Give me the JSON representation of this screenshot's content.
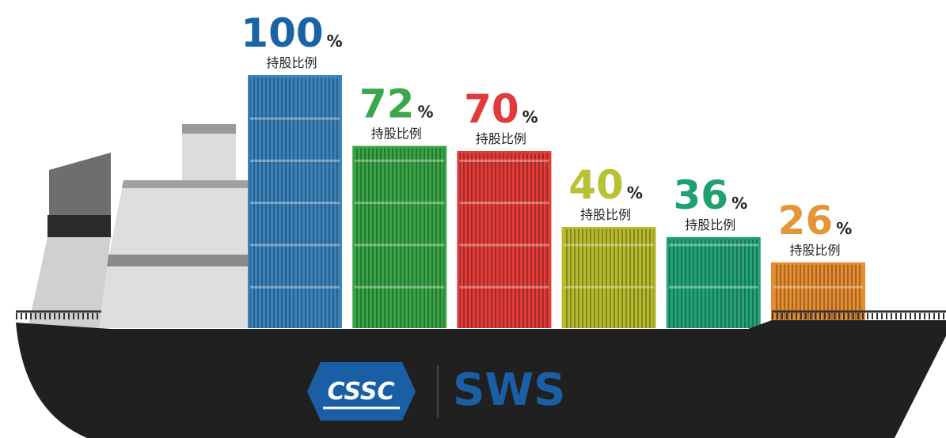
{
  "chart_data": {
    "type": "bar",
    "values": [
      100,
      72,
      70,
      40,
      36,
      26
    ],
    "value_unit": "%",
    "value_caption": "持股比例",
    "colors": [
      "#3a82bb",
      "#37a445",
      "#e23b38",
      "#b7ba2c",
      "#22a37a",
      "#e58c30"
    ],
    "label_colors": [
      "#1b63a5",
      "#3aa84a",
      "#e13a3a",
      "#b9c232",
      "#1fa070",
      "#e39638"
    ],
    "ylim": [
      0,
      100
    ]
  },
  "logo": {
    "left": "CSSC",
    "right": "SWS"
  }
}
